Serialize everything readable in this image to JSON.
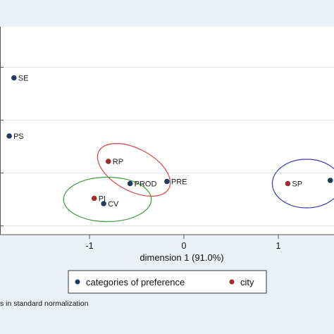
{
  "colors": {
    "background": "#eaf0f4",
    "plot_bg": "#ffffff",
    "gridline": "#dfe6ec",
    "category": "#1f3a5f",
    "city": "#9b2f30",
    "ellipse_red": "#d9463f",
    "ellipse_green": "#3a9a3a",
    "ellipse_blue": "#3b3fb4"
  },
  "chart_data": {
    "type": "scatter",
    "xlabel": "dimension 1 (91.0%)",
    "ylabel": "",
    "x_ticks": [
      {
        "value": -1,
        "label": "-1"
      },
      {
        "value": 0,
        "label": "0"
      },
      {
        "value": 1,
        "label": "1"
      }
    ],
    "grid": true,
    "legend": {
      "placement": "bottom",
      "entries": [
        {
          "key": "category",
          "label": "categories of preference"
        },
        {
          "key": "city",
          "label": "city"
        }
      ]
    },
    "footnote": "s in standard normalization",
    "series": [
      {
        "key": "category",
        "name": "categories of preference",
        "points": [
          {
            "label": "SE",
            "x": -1.8,
            "y": 1.4
          },
          {
            "label": "PS",
            "x": -1.85,
            "y": 0.85
          },
          {
            "label": "PROD",
            "x": -0.57,
            "y": 0.4
          },
          {
            "label": "PRE",
            "x": -0.18,
            "y": 0.42
          },
          {
            "label": "CV",
            "x": -0.85,
            "y": 0.21
          },
          {
            "label": "",
            "x": 1.55,
            "y": 0.43
          }
        ]
      },
      {
        "key": "city",
        "name": "city",
        "points": [
          {
            "label": "RP",
            "x": -0.8,
            "y": 0.61
          },
          {
            "label": "PI",
            "x": -0.95,
            "y": 0.26
          },
          {
            "label": "SP",
            "x": 1.1,
            "y": 0.4
          }
        ]
      }
    ],
    "ellipses": [
      {
        "color_key": "ellipse_red",
        "cx": -0.53,
        "cy": 0.53,
        "rx": 0.75,
        "ry": 0.2,
        "rotation": 28
      },
      {
        "color_key": "ellipse_green",
        "cx": -0.81,
        "cy": 0.25,
        "rx": 0.83,
        "ry": 0.21,
        "rotation": 0
      },
      {
        "color_key": "ellipse_blue",
        "cx": 1.3,
        "cy": 0.4,
        "rx": 0.65,
        "ry": 0.23,
        "rotation": 0
      }
    ]
  }
}
